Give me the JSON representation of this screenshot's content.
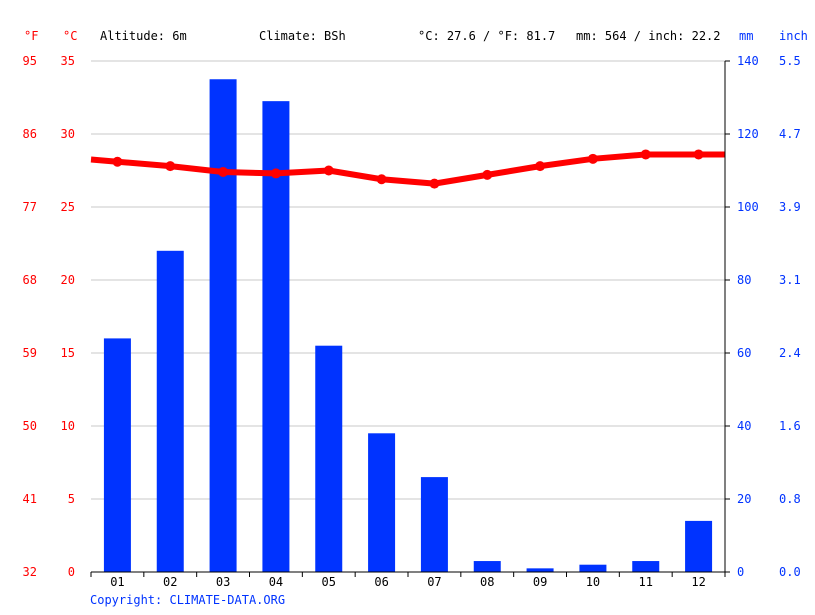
{
  "header": {
    "f_unit": "°F",
    "c_unit": "°C",
    "altitude": "Altitude: 6m",
    "climate": "Climate: BSh",
    "temp_summary": "°C: 27.6 / °F: 81.7",
    "precip_summary": "mm: 564 / inch: 22.2",
    "mm_unit": "mm",
    "inch_unit": "inch"
  },
  "footer": {
    "copyright": "Copyright: CLIMATE-DATA.ORG"
  },
  "colors": {
    "temperature": "#ff0000",
    "precipitation": "#0033ff",
    "grid": "#c8c8c8",
    "axis": "#000000"
  },
  "chart_data": {
    "type": "bar",
    "categories": [
      "01",
      "02",
      "03",
      "04",
      "05",
      "06",
      "07",
      "08",
      "09",
      "10",
      "11",
      "12"
    ],
    "series": [
      {
        "kind": "bar",
        "axis": "right-mm",
        "values": [
          64,
          88,
          135,
          129,
          62,
          38,
          26,
          3,
          1,
          2,
          3,
          14
        ]
      },
      {
        "kind": "line",
        "axis": "left-c",
        "values": [
          28.1,
          27.8,
          27.4,
          27.3,
          27.5,
          26.9,
          26.6,
          27.2,
          27.8,
          28.3,
          28.6,
          28.6
        ]
      }
    ],
    "left_axis_c": {
      "ticks": [
        "0",
        "5",
        "10",
        "15",
        "20",
        "25",
        "30",
        "35"
      ],
      "range": [
        0,
        35
      ]
    },
    "left_axis_f": {
      "ticks": [
        "32",
        "41",
        "50",
        "59",
        "68",
        "77",
        "86",
        "95"
      ]
    },
    "right_axis_mm": {
      "ticks": [
        "0",
        "20",
        "40",
        "60",
        "80",
        "100",
        "120",
        "140"
      ],
      "range": [
        0,
        140
      ]
    },
    "right_axis_inch": {
      "ticks": [
        "0.0",
        "0.8",
        "1.6",
        "2.4",
        "3.1",
        "3.9",
        "4.7",
        "5.5"
      ]
    },
    "grid": true
  }
}
